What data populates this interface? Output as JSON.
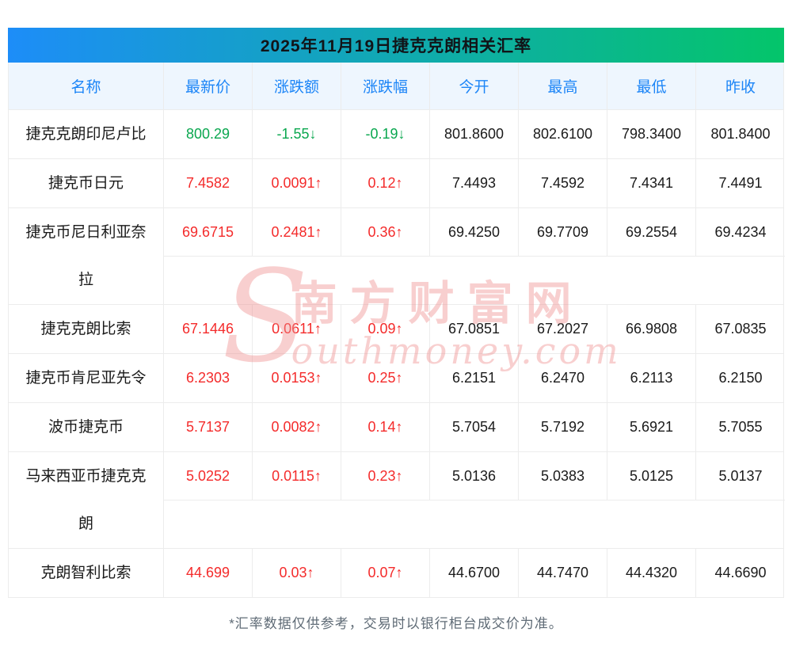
{
  "title": "2025年11月19日捷克克朗相关汇率",
  "chart_data": {
    "type": "table",
    "title": "2025年11月19日捷克克朗相关汇率",
    "columns": [
      "名称",
      "最新价",
      "涨跌额",
      "涨跌幅",
      "今开",
      "最高",
      "最低",
      "昨收"
    ],
    "rows": [
      {
        "name": "捷克克朗印尼卢比",
        "latest": "800.29",
        "change": "-1.55↓",
        "change_pct": "-0.19↓",
        "open": "801.8600",
        "high": "802.6100",
        "low": "798.3400",
        "prev_close": "801.8400",
        "trend": "down"
      },
      {
        "name": "捷克币日元",
        "latest": "7.4582",
        "change": "0.0091↑",
        "change_pct": "0.12↑",
        "open": "7.4493",
        "high": "7.4592",
        "low": "7.4341",
        "prev_close": "7.4491",
        "trend": "up"
      },
      {
        "name": "捷克币尼日利亚奈拉",
        "latest": "69.6715",
        "change": "0.2481↑",
        "change_pct": "0.36↑",
        "open": "69.4250",
        "high": "69.7709",
        "low": "69.2554",
        "prev_close": "69.4234",
        "trend": "up"
      },
      {
        "name": "捷克克朗比索",
        "latest": "67.1446",
        "change": "0.0611↑",
        "change_pct": "0.09↑",
        "open": "67.0851",
        "high": "67.2027",
        "low": "66.9808",
        "prev_close": "67.0835",
        "trend": "up"
      },
      {
        "name": "捷克币肯尼亚先令",
        "latest": "6.2303",
        "change": "0.0153↑",
        "change_pct": "0.25↑",
        "open": "6.2151",
        "high": "6.2470",
        "low": "6.2113",
        "prev_close": "6.2150",
        "trend": "up"
      },
      {
        "name": "波币捷克币",
        "latest": "5.7137",
        "change": "0.0082↑",
        "change_pct": "0.14↑",
        "open": "5.7054",
        "high": "5.7192",
        "low": "5.6921",
        "prev_close": "5.7055",
        "trend": "up"
      },
      {
        "name": "马来西亚币捷克克朗",
        "latest": "5.0252",
        "change": "0.0115↑",
        "change_pct": "0.23↑",
        "open": "5.0136",
        "high": "5.0383",
        "low": "5.0125",
        "prev_close": "5.0137",
        "trend": "up"
      },
      {
        "name": "克朗智利比索",
        "latest": "44.699",
        "change": "0.03↑",
        "change_pct": "0.07↑",
        "open": "44.6700",
        "high": "44.7470",
        "low": "44.4320",
        "prev_close": "44.6690",
        "trend": "up"
      }
    ]
  },
  "footer_note": "*汇率数据仅供参考，交易时以银行柜台成交价为准。",
  "watermark": {
    "initial": "S",
    "cn": "南方财富网",
    "en_rest": "outhmoney.com"
  },
  "colors": {
    "title_gradient_left": "#1d8df8",
    "title_gradient_right": "#04c56a",
    "title_text": "#111418",
    "header_bg": "#eef6fe",
    "header_text": "#1c85f7",
    "up_red": "#f42b2b",
    "down_green": "#0aa74f",
    "border": "#ececec",
    "body_text": "#1a1a1a",
    "footer_text": "#5f6b76",
    "watermark_pink": "#ef8f8f"
  }
}
